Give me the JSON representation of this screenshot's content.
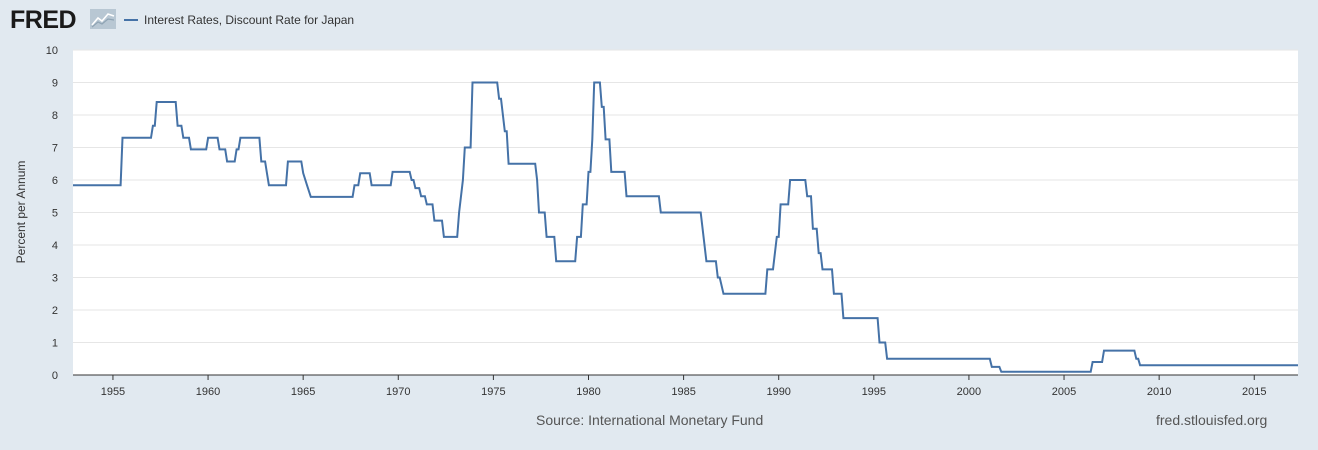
{
  "header": {
    "logo_text": "FRED",
    "legend_label": "Interest Rates, Discount Rate for Japan",
    "series_color": "#4572a7"
  },
  "footer": {
    "source": "Source: International Monetary Fund",
    "site": "fred.stlouisfed.org"
  },
  "chart_data": {
    "type": "line",
    "title": "",
    "xlabel": "",
    "ylabel": "Percent per Annum",
    "xlim": [
      1952.9,
      2017.3
    ],
    "ylim": [
      0,
      10
    ],
    "x_ticks": [
      1955,
      1960,
      1965,
      1970,
      1975,
      1980,
      1985,
      1990,
      1995,
      2000,
      2005,
      2010,
      2015
    ],
    "y_ticks": [
      0,
      1,
      2,
      3,
      4,
      5,
      6,
      7,
      8,
      9,
      10
    ],
    "grid": "horizontal",
    "legend_position": "top-left",
    "series": [
      {
        "name": "Interest Rates, Discount Rate for Japan",
        "color": "#4572a7",
        "points": [
          [
            1952.9,
            5.84
          ],
          [
            1955.4,
            5.84
          ],
          [
            1955.5,
            7.3
          ],
          [
            1957.0,
            7.3
          ],
          [
            1957.1,
            7.67
          ],
          [
            1957.2,
            7.67
          ],
          [
            1957.3,
            8.4
          ],
          [
            1958.3,
            8.4
          ],
          [
            1958.4,
            7.67
          ],
          [
            1958.6,
            7.67
          ],
          [
            1958.7,
            7.3
          ],
          [
            1959.0,
            7.3
          ],
          [
            1959.1,
            6.94
          ],
          [
            1959.9,
            6.94
          ],
          [
            1960.0,
            7.3
          ],
          [
            1960.5,
            7.3
          ],
          [
            1960.6,
            6.94
          ],
          [
            1960.9,
            6.94
          ],
          [
            1961.0,
            6.57
          ],
          [
            1961.4,
            6.57
          ],
          [
            1961.5,
            6.94
          ],
          [
            1961.6,
            6.94
          ],
          [
            1961.7,
            7.3
          ],
          [
            1962.7,
            7.3
          ],
          [
            1962.8,
            6.57
          ],
          [
            1963.0,
            6.57
          ],
          [
            1963.1,
            6.2
          ],
          [
            1963.2,
            5.84
          ],
          [
            1964.1,
            5.84
          ],
          [
            1964.2,
            6.57
          ],
          [
            1964.9,
            6.57
          ],
          [
            1965.0,
            6.21
          ],
          [
            1965.2,
            5.84
          ],
          [
            1965.4,
            5.48
          ],
          [
            1967.6,
            5.48
          ],
          [
            1967.7,
            5.84
          ],
          [
            1967.9,
            5.84
          ],
          [
            1968.0,
            6.21
          ],
          [
            1968.5,
            6.21
          ],
          [
            1968.6,
            5.84
          ],
          [
            1969.6,
            5.84
          ],
          [
            1969.7,
            6.25
          ],
          [
            1970.6,
            6.25
          ],
          [
            1970.7,
            6.0
          ],
          [
            1970.8,
            6.0
          ],
          [
            1970.9,
            5.75
          ],
          [
            1971.1,
            5.75
          ],
          [
            1971.2,
            5.5
          ],
          [
            1971.4,
            5.5
          ],
          [
            1971.5,
            5.25
          ],
          [
            1971.8,
            5.25
          ],
          [
            1971.9,
            4.75
          ],
          [
            1972.3,
            4.75
          ],
          [
            1972.4,
            4.25
          ],
          [
            1973.1,
            4.25
          ],
          [
            1973.2,
            5.0
          ],
          [
            1973.3,
            5.5
          ],
          [
            1973.4,
            6.0
          ],
          [
            1973.5,
            7.0
          ],
          [
            1973.8,
            7.0
          ],
          [
            1973.9,
            9.0
          ],
          [
            1975.2,
            9.0
          ],
          [
            1975.3,
            8.5
          ],
          [
            1975.4,
            8.5
          ],
          [
            1975.5,
            8.0
          ],
          [
            1975.6,
            7.5
          ],
          [
            1975.7,
            7.5
          ],
          [
            1975.8,
            6.5
          ],
          [
            1977.2,
            6.5
          ],
          [
            1977.3,
            6.0
          ],
          [
            1977.4,
            5.0
          ],
          [
            1977.7,
            5.0
          ],
          [
            1977.8,
            4.25
          ],
          [
            1978.2,
            4.25
          ],
          [
            1978.3,
            3.5
          ],
          [
            1979.3,
            3.5
          ],
          [
            1979.4,
            4.25
          ],
          [
            1979.6,
            4.25
          ],
          [
            1979.7,
            5.25
          ],
          [
            1979.9,
            5.25
          ],
          [
            1980.0,
            6.25
          ],
          [
            1980.1,
            6.25
          ],
          [
            1980.2,
            7.25
          ],
          [
            1980.3,
            9.0
          ],
          [
            1980.6,
            9.0
          ],
          [
            1980.7,
            8.25
          ],
          [
            1980.8,
            8.25
          ],
          [
            1980.9,
            7.25
          ],
          [
            1981.1,
            7.25
          ],
          [
            1981.2,
            6.25
          ],
          [
            1981.9,
            6.25
          ],
          [
            1982.0,
            5.5
          ],
          [
            1983.7,
            5.5
          ],
          [
            1983.8,
            5.0
          ],
          [
            1985.9,
            5.0
          ],
          [
            1986.0,
            4.5
          ],
          [
            1986.2,
            3.5
          ],
          [
            1986.7,
            3.5
          ],
          [
            1986.8,
            3.0
          ],
          [
            1986.9,
            3.0
          ],
          [
            1987.1,
            2.5
          ],
          [
            1989.3,
            2.5
          ],
          [
            1989.4,
            3.25
          ],
          [
            1989.7,
            3.25
          ],
          [
            1989.8,
            3.75
          ],
          [
            1989.9,
            4.25
          ],
          [
            1990.0,
            4.25
          ],
          [
            1990.1,
            5.25
          ],
          [
            1990.5,
            5.25
          ],
          [
            1990.6,
            6.0
          ],
          [
            1991.4,
            6.0
          ],
          [
            1991.5,
            5.5
          ],
          [
            1991.7,
            5.5
          ],
          [
            1991.8,
            4.5
          ],
          [
            1992.0,
            4.5
          ],
          [
            1992.1,
            3.75
          ],
          [
            1992.2,
            3.75
          ],
          [
            1992.3,
            3.25
          ],
          [
            1992.8,
            3.25
          ],
          [
            1992.9,
            2.5
          ],
          [
            1993.3,
            2.5
          ],
          [
            1993.4,
            1.75
          ],
          [
            1995.2,
            1.75
          ],
          [
            1995.3,
            1.0
          ],
          [
            1995.6,
            1.0
          ],
          [
            1995.7,
            0.5
          ],
          [
            2001.1,
            0.5
          ],
          [
            2001.2,
            0.25
          ],
          [
            2001.6,
            0.25
          ],
          [
            2001.7,
            0.1
          ],
          [
            2006.4,
            0.1
          ],
          [
            2006.5,
            0.4
          ],
          [
            2007.0,
            0.4
          ],
          [
            2007.1,
            0.75
          ],
          [
            2008.7,
            0.75
          ],
          [
            2008.8,
            0.5
          ],
          [
            2008.9,
            0.5
          ],
          [
            2009.0,
            0.3
          ],
          [
            2017.3,
            0.3
          ]
        ]
      }
    ]
  }
}
